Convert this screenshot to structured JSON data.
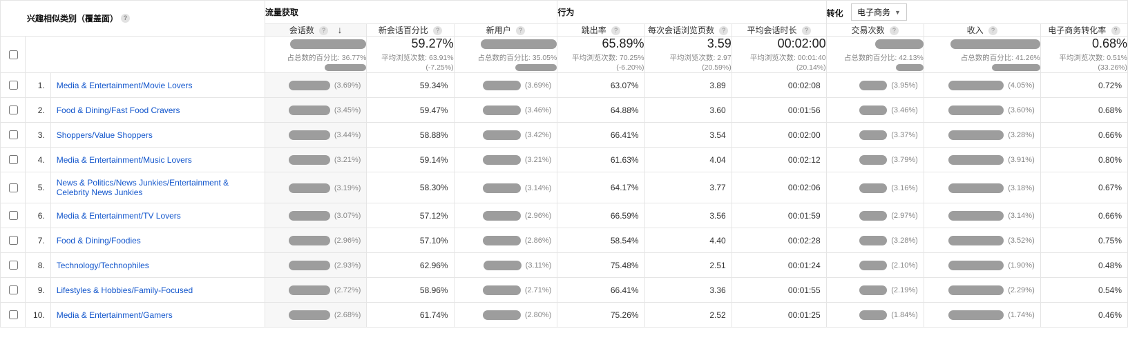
{
  "colors": {
    "link": "#1155cc",
    "border": "#e5e5e5",
    "muted": "#878787",
    "redact": "#9d9d9d",
    "text": "#333333",
    "bg": "#ffffff"
  },
  "header": {
    "dimension_label": "兴趣相似类别（覆盖面）",
    "groups": {
      "acquisition": "流量获取",
      "behavior": "行为",
      "conversion": "转化"
    },
    "segment_selector": {
      "label": "电子商务"
    }
  },
  "columns": {
    "sessions": {
      "label": "会话数",
      "sorted_desc": true
    },
    "new_sess_pct": {
      "label": "新会话百分比"
    },
    "new_users": {
      "label": "新用户"
    },
    "bounce": {
      "label": "跳出率"
    },
    "pages": {
      "label": "每次会话浏览页数"
    },
    "duration": {
      "label": "平均会话时长"
    },
    "transactions": {
      "label": "交易次数"
    },
    "revenue": {
      "label": "收入"
    },
    "ecom_rate": {
      "label": "电子商务转化率"
    }
  },
  "summary": {
    "sessions": {
      "value_redacted": true,
      "sub_prefix": "占总数的百分比: 36.77%",
      "sub_line2_redacted": true
    },
    "new_sess_pct": {
      "value": "59.27%",
      "sub": "平均浏览次数: 63.91% (-7.25%)"
    },
    "new_users": {
      "value_redacted": true,
      "sub_prefix": "占总数的百分比: 35.05%",
      "sub_line2_redacted": true
    },
    "bounce": {
      "value": "65.89%",
      "sub": "平均浏览次数: 70.25% (-6.20%)"
    },
    "pages": {
      "value": "3.59",
      "sub": "平均浏览次数: 2.97 (20.59%)"
    },
    "duration": {
      "value": "00:02:00",
      "sub": "平均浏览次数: 00:01:40 (20.14%)"
    },
    "transactions": {
      "value_redacted": true,
      "sub_prefix": "占总数的百分比: 42.13%",
      "sub_line2_redacted": true
    },
    "revenue": {
      "value_redacted": true,
      "sub_prefix": "占总数的百分比: 41.26%",
      "sub_line2_redacted": true
    },
    "ecom_rate": {
      "value": "0.68%",
      "sub": "平均浏览次数: 0.51% (33.26%)"
    }
  },
  "rows": [
    {
      "n": "1.",
      "name": "Media & Entertainment/Movie Lovers",
      "sessions_pct": "(3.69%)",
      "new_sess_pct": "59.34%",
      "new_users_pct": "(3.69%)",
      "bounce": "63.07%",
      "pages": "3.89",
      "duration": "00:02:08",
      "trans_pct": "(3.95%)",
      "rev_pct": "(4.05%)",
      "ecr": "0.72%"
    },
    {
      "n": "2.",
      "name": "Food & Dining/Fast Food Cravers",
      "sessions_pct": "(3.45%)",
      "new_sess_pct": "59.47%",
      "new_users_pct": "(3.46%)",
      "bounce": "64.88%",
      "pages": "3.60",
      "duration": "00:01:56",
      "trans_pct": "(3.46%)",
      "rev_pct": "(3.60%)",
      "ecr": "0.68%"
    },
    {
      "n": "3.",
      "name": "Shoppers/Value Shoppers",
      "sessions_pct": "(3.44%)",
      "new_sess_pct": "58.88%",
      "new_users_pct": "(3.42%)",
      "bounce": "66.41%",
      "pages": "3.54",
      "duration": "00:02:00",
      "trans_pct": "(3.37%)",
      "rev_pct": "(3.28%)",
      "ecr": "0.66%"
    },
    {
      "n": "4.",
      "name": "Media & Entertainment/Music Lovers",
      "sessions_pct": "(3.21%)",
      "new_sess_pct": "59.14%",
      "new_users_pct": "(3.21%)",
      "bounce": "61.63%",
      "pages": "4.04",
      "duration": "00:02:12",
      "trans_pct": "(3.79%)",
      "rev_pct": "(3.91%)",
      "ecr": "0.80%"
    },
    {
      "n": "5.",
      "name": "News & Politics/News Junkies/Entertainment & Celebrity News Junkies",
      "sessions_pct": "(3.19%)",
      "new_sess_pct": "58.30%",
      "new_users_pct": "(3.14%)",
      "bounce": "64.17%",
      "pages": "3.77",
      "duration": "00:02:06",
      "trans_pct": "(3.16%)",
      "rev_pct": "(3.18%)",
      "ecr": "0.67%"
    },
    {
      "n": "6.",
      "name": "Media & Entertainment/TV Lovers",
      "sessions_pct": "(3.07%)",
      "new_sess_pct": "57.12%",
      "new_users_pct": "(2.96%)",
      "bounce": "66.59%",
      "pages": "3.56",
      "duration": "00:01:59",
      "trans_pct": "(2.97%)",
      "rev_pct": "(3.14%)",
      "ecr": "0.66%"
    },
    {
      "n": "7.",
      "name": "Food & Dining/Foodies",
      "sessions_pct": "(2.96%)",
      "new_sess_pct": "57.10%",
      "new_users_pct": "(2.86%)",
      "bounce": "58.54%",
      "pages": "4.40",
      "duration": "00:02:28",
      "trans_pct": "(3.28%)",
      "rev_pct": "(3.52%)",
      "ecr": "0.75%"
    },
    {
      "n": "8.",
      "name": "Technology/Technophiles",
      "sessions_pct": "(2.93%)",
      "new_sess_pct": "62.96%",
      "new_users_pct": "(3.11%)",
      "bounce": "75.48%",
      "pages": "2.51",
      "duration": "00:01:24",
      "trans_pct": "(2.10%)",
      "rev_pct": "(1.90%)",
      "ecr": "0.48%"
    },
    {
      "n": "9.",
      "name": "Lifestyles & Hobbies/Family-Focused",
      "sessions_pct": "(2.72%)",
      "new_sess_pct": "58.96%",
      "new_users_pct": "(2.71%)",
      "bounce": "66.41%",
      "pages": "3.36",
      "duration": "00:01:55",
      "trans_pct": "(2.19%)",
      "rev_pct": "(2.29%)",
      "ecr": "0.54%"
    },
    {
      "n": "10.",
      "name": "Media & Entertainment/Gamers",
      "sessions_pct": "(2.68%)",
      "new_sess_pct": "61.74%",
      "new_users_pct": "(2.80%)",
      "bounce": "75.26%",
      "pages": "2.52",
      "duration": "00:01:25",
      "trans_pct": "(1.84%)",
      "rev_pct": "(1.74%)",
      "ecr": "0.46%"
    }
  ],
  "redaction_widths": {
    "sessions_val": 60,
    "newusers_val": 55,
    "trans_val": 40,
    "rev_val": 80,
    "summary_big": 110,
    "summary_sub": 60
  }
}
